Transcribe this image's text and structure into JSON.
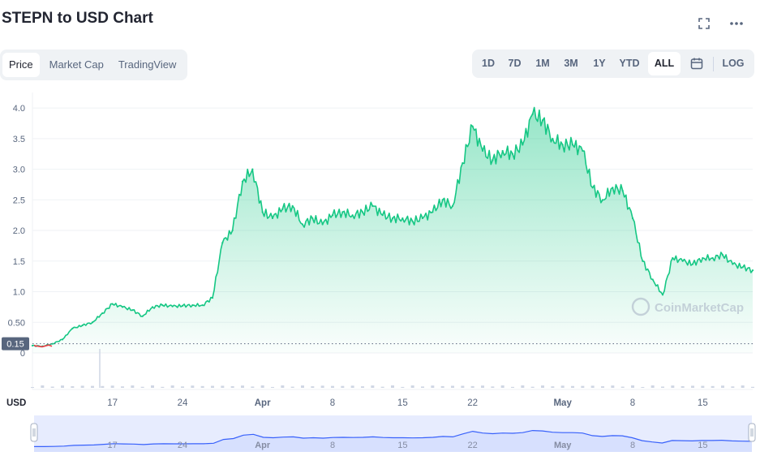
{
  "header": {
    "title": "STEPN to USD Chart",
    "fullscreen_icon": "fullscreen-icon",
    "more_icon": "more-dots-icon"
  },
  "tabs": [
    {
      "label": "Price",
      "active": true
    },
    {
      "label": "Market Cap",
      "active": false
    },
    {
      "label": "TradingView",
      "active": false
    }
  ],
  "ranges": [
    {
      "label": "1D",
      "active": false
    },
    {
      "label": "7D",
      "active": false
    },
    {
      "label": "1M",
      "active": false
    },
    {
      "label": "3M",
      "active": false
    },
    {
      "label": "1Y",
      "active": false
    },
    {
      "label": "YTD",
      "active": false
    },
    {
      "label": "ALL",
      "active": true
    }
  ],
  "calendar_icon": "calendar-icon",
  "log_label": "LOG",
  "watermark": "CoinMarketCap",
  "currency_label": "USD",
  "current_price_label": "0.15",
  "colors": {
    "line": "#16c784",
    "fill_top": "#16c784",
    "navigator_line": "#3861fb",
    "navigator_fill": "#d7e0fe",
    "start_segment": "#ea3943"
  },
  "chart_data": {
    "type": "area",
    "title": "STEPN to USD Chart",
    "ylabel": "",
    "xlabel": "",
    "ylim": [
      0,
      4.2
    ],
    "y_ticks": [
      "0",
      "0.50",
      "1.0",
      "1.5",
      "2.0",
      "2.5",
      "3.0",
      "3.5",
      "4.0"
    ],
    "x_ticks": [
      "17",
      "24",
      "Apr",
      "8",
      "15",
      "22",
      "May",
      "8",
      "15"
    ],
    "x_tick_dates": [
      "2022-03-17",
      "2022-03-24",
      "2022-04-01",
      "2022-04-08",
      "2022-04-15",
      "2022-04-22",
      "2022-05-01",
      "2022-05-08",
      "2022-05-15"
    ],
    "grid": true,
    "series": [
      {
        "x": [
          "2022-03-09",
          "2022-03-10",
          "2022-03-11",
          "2022-03-12",
          "2022-03-13",
          "2022-03-14",
          "2022-03-15",
          "2022-03-16",
          "2022-03-17",
          "2022-03-18",
          "2022-03-19",
          "2022-03-20",
          "2022-03-21",
          "2022-03-22",
          "2022-03-23",
          "2022-03-24",
          "2022-03-25",
          "2022-03-26",
          "2022-03-27",
          "2022-03-28",
          "2022-03-29",
          "2022-03-30",
          "2022-03-31",
          "2022-04-01",
          "2022-04-02",
          "2022-04-03",
          "2022-04-04",
          "2022-04-05",
          "2022-04-06",
          "2022-04-07",
          "2022-04-08",
          "2022-04-09",
          "2022-04-10",
          "2022-04-11",
          "2022-04-12",
          "2022-04-13",
          "2022-04-14",
          "2022-04-15",
          "2022-04-16",
          "2022-04-17",
          "2022-04-18",
          "2022-04-19",
          "2022-04-20",
          "2022-04-21",
          "2022-04-22",
          "2022-04-23",
          "2022-04-24",
          "2022-04-25",
          "2022-04-26",
          "2022-04-27",
          "2022-04-28",
          "2022-04-29",
          "2022-04-30",
          "2022-05-01",
          "2022-05-02",
          "2022-05-03",
          "2022-05-04",
          "2022-05-05",
          "2022-05-06",
          "2022-05-07",
          "2022-05-08",
          "2022-05-09",
          "2022-05-10",
          "2022-05-11",
          "2022-05-12",
          "2022-05-13",
          "2022-05-14",
          "2022-05-15",
          "2022-05-16",
          "2022-05-17",
          "2022-05-18",
          "2022-05-19",
          "2022-05-20"
        ],
        "values": [
          0.12,
          0.11,
          0.15,
          0.22,
          0.4,
          0.45,
          0.5,
          0.65,
          0.8,
          0.75,
          0.7,
          0.6,
          0.75,
          0.78,
          0.76,
          0.77,
          0.78,
          0.78,
          0.9,
          1.8,
          2.0,
          2.8,
          3.0,
          2.3,
          2.2,
          2.35,
          2.4,
          2.1,
          2.2,
          2.1,
          2.25,
          2.3,
          2.25,
          2.3,
          2.4,
          2.25,
          2.2,
          2.2,
          2.15,
          2.2,
          2.3,
          2.5,
          2.4,
          3.1,
          3.7,
          3.3,
          3.15,
          3.3,
          3.25,
          3.4,
          3.9,
          3.8,
          3.5,
          3.4,
          3.4,
          3.3,
          2.7,
          2.5,
          2.7,
          2.65,
          2.2,
          1.5,
          1.2,
          0.95,
          1.55,
          1.5,
          1.45,
          1.55,
          1.55,
          1.6,
          1.45,
          1.4,
          1.35
        ]
      }
    ]
  }
}
